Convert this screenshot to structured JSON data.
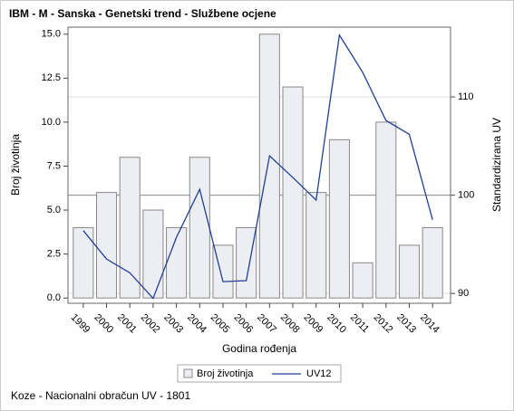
{
  "chart_data": {
    "type": "bar-line",
    "title": "IBM - M - Sanska - Genetski trend - Službene ocjene",
    "x_label": "Godina rođenja",
    "y_label": "Broj životinja",
    "y2_label": "Standardizirana UV",
    "footnote": "Koze - Nacionalni obračun UV - 1801",
    "categories": [
      "1999",
      "2000",
      "2001",
      "2002",
      "2003",
      "2004",
      "2005",
      "2006",
      "2007",
      "2008",
      "2009",
      "2010",
      "2011",
      "2012",
      "2013",
      "2014"
    ],
    "series": [
      {
        "name": "Broj životinja",
        "type": "bar",
        "color": "#eceef3",
        "values": [
          4,
          6,
          8,
          5,
          4,
          8,
          3,
          4,
          15,
          12,
          6,
          9,
          2,
          10,
          3,
          4
        ]
      },
      {
        "name": "UV12",
        "type": "line",
        "axis": "y2",
        "color": "#1f3f94",
        "values": [
          96.4,
          93.5,
          92.1,
          89.5,
          95.7,
          100.6,
          91.2,
          91.3,
          104.0,
          101.8,
          99.5,
          116.3,
          112.5,
          107.6,
          106.2,
          97.5
        ]
      }
    ],
    "ylim": [
      -0.3,
      15.4
    ],
    "yticks": [
      {
        "value": 0,
        "label": "0.0"
      },
      {
        "value": 2.5,
        "label": "2.5"
      },
      {
        "value": 5,
        "label": "5.0"
      },
      {
        "value": 7.5,
        "label": "7.5"
      },
      {
        "value": 10,
        "label": "10.0"
      },
      {
        "value": 12.5,
        "label": "12.5"
      },
      {
        "value": 15,
        "label": "15.0"
      }
    ],
    "y2lim": [
      89,
      117.1
    ],
    "y2ticks": [
      90,
      100,
      110
    ],
    "grid": true,
    "legend": "bottom"
  }
}
